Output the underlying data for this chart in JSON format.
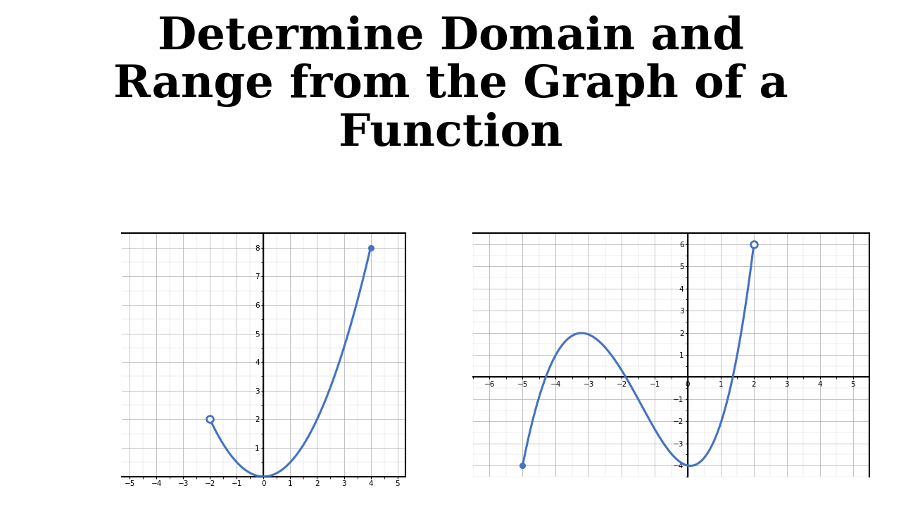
{
  "title": "Determine Domain and\nRange from the Graph of a\nFunction",
  "title_fontsize": 46,
  "title_fontweight": "bold",
  "title_color": "#000000",
  "bg_color": "#ffffff",
  "graph1": {
    "xlim": [
      -5.3,
      5.3
    ],
    "ylim": [
      0,
      8.5
    ],
    "xticks": [
      -5,
      -4,
      -3,
      -2,
      -1,
      0,
      1,
      2,
      3,
      4,
      5
    ],
    "yticks": [
      1,
      2,
      3,
      4,
      5,
      6,
      7,
      8
    ],
    "open_point": [
      -2,
      2
    ],
    "closed_point": [
      4,
      8
    ],
    "curve_color": "#4472C4",
    "line_width": 2.2
  },
  "graph2": {
    "xlim": [
      -6.5,
      5.5
    ],
    "ylim": [
      -4.5,
      6.5
    ],
    "xticks": [
      -6,
      -5,
      -4,
      -3,
      -2,
      -1,
      0,
      1,
      2,
      3,
      4,
      5
    ],
    "yticks": [
      -4,
      -3,
      -2,
      -1,
      1,
      2,
      3,
      4,
      5,
      6
    ],
    "open_point": [
      2,
      6
    ],
    "closed_point": [
      -5,
      -4
    ],
    "curve_color": "#4472C4",
    "line_width": 2.2
  }
}
